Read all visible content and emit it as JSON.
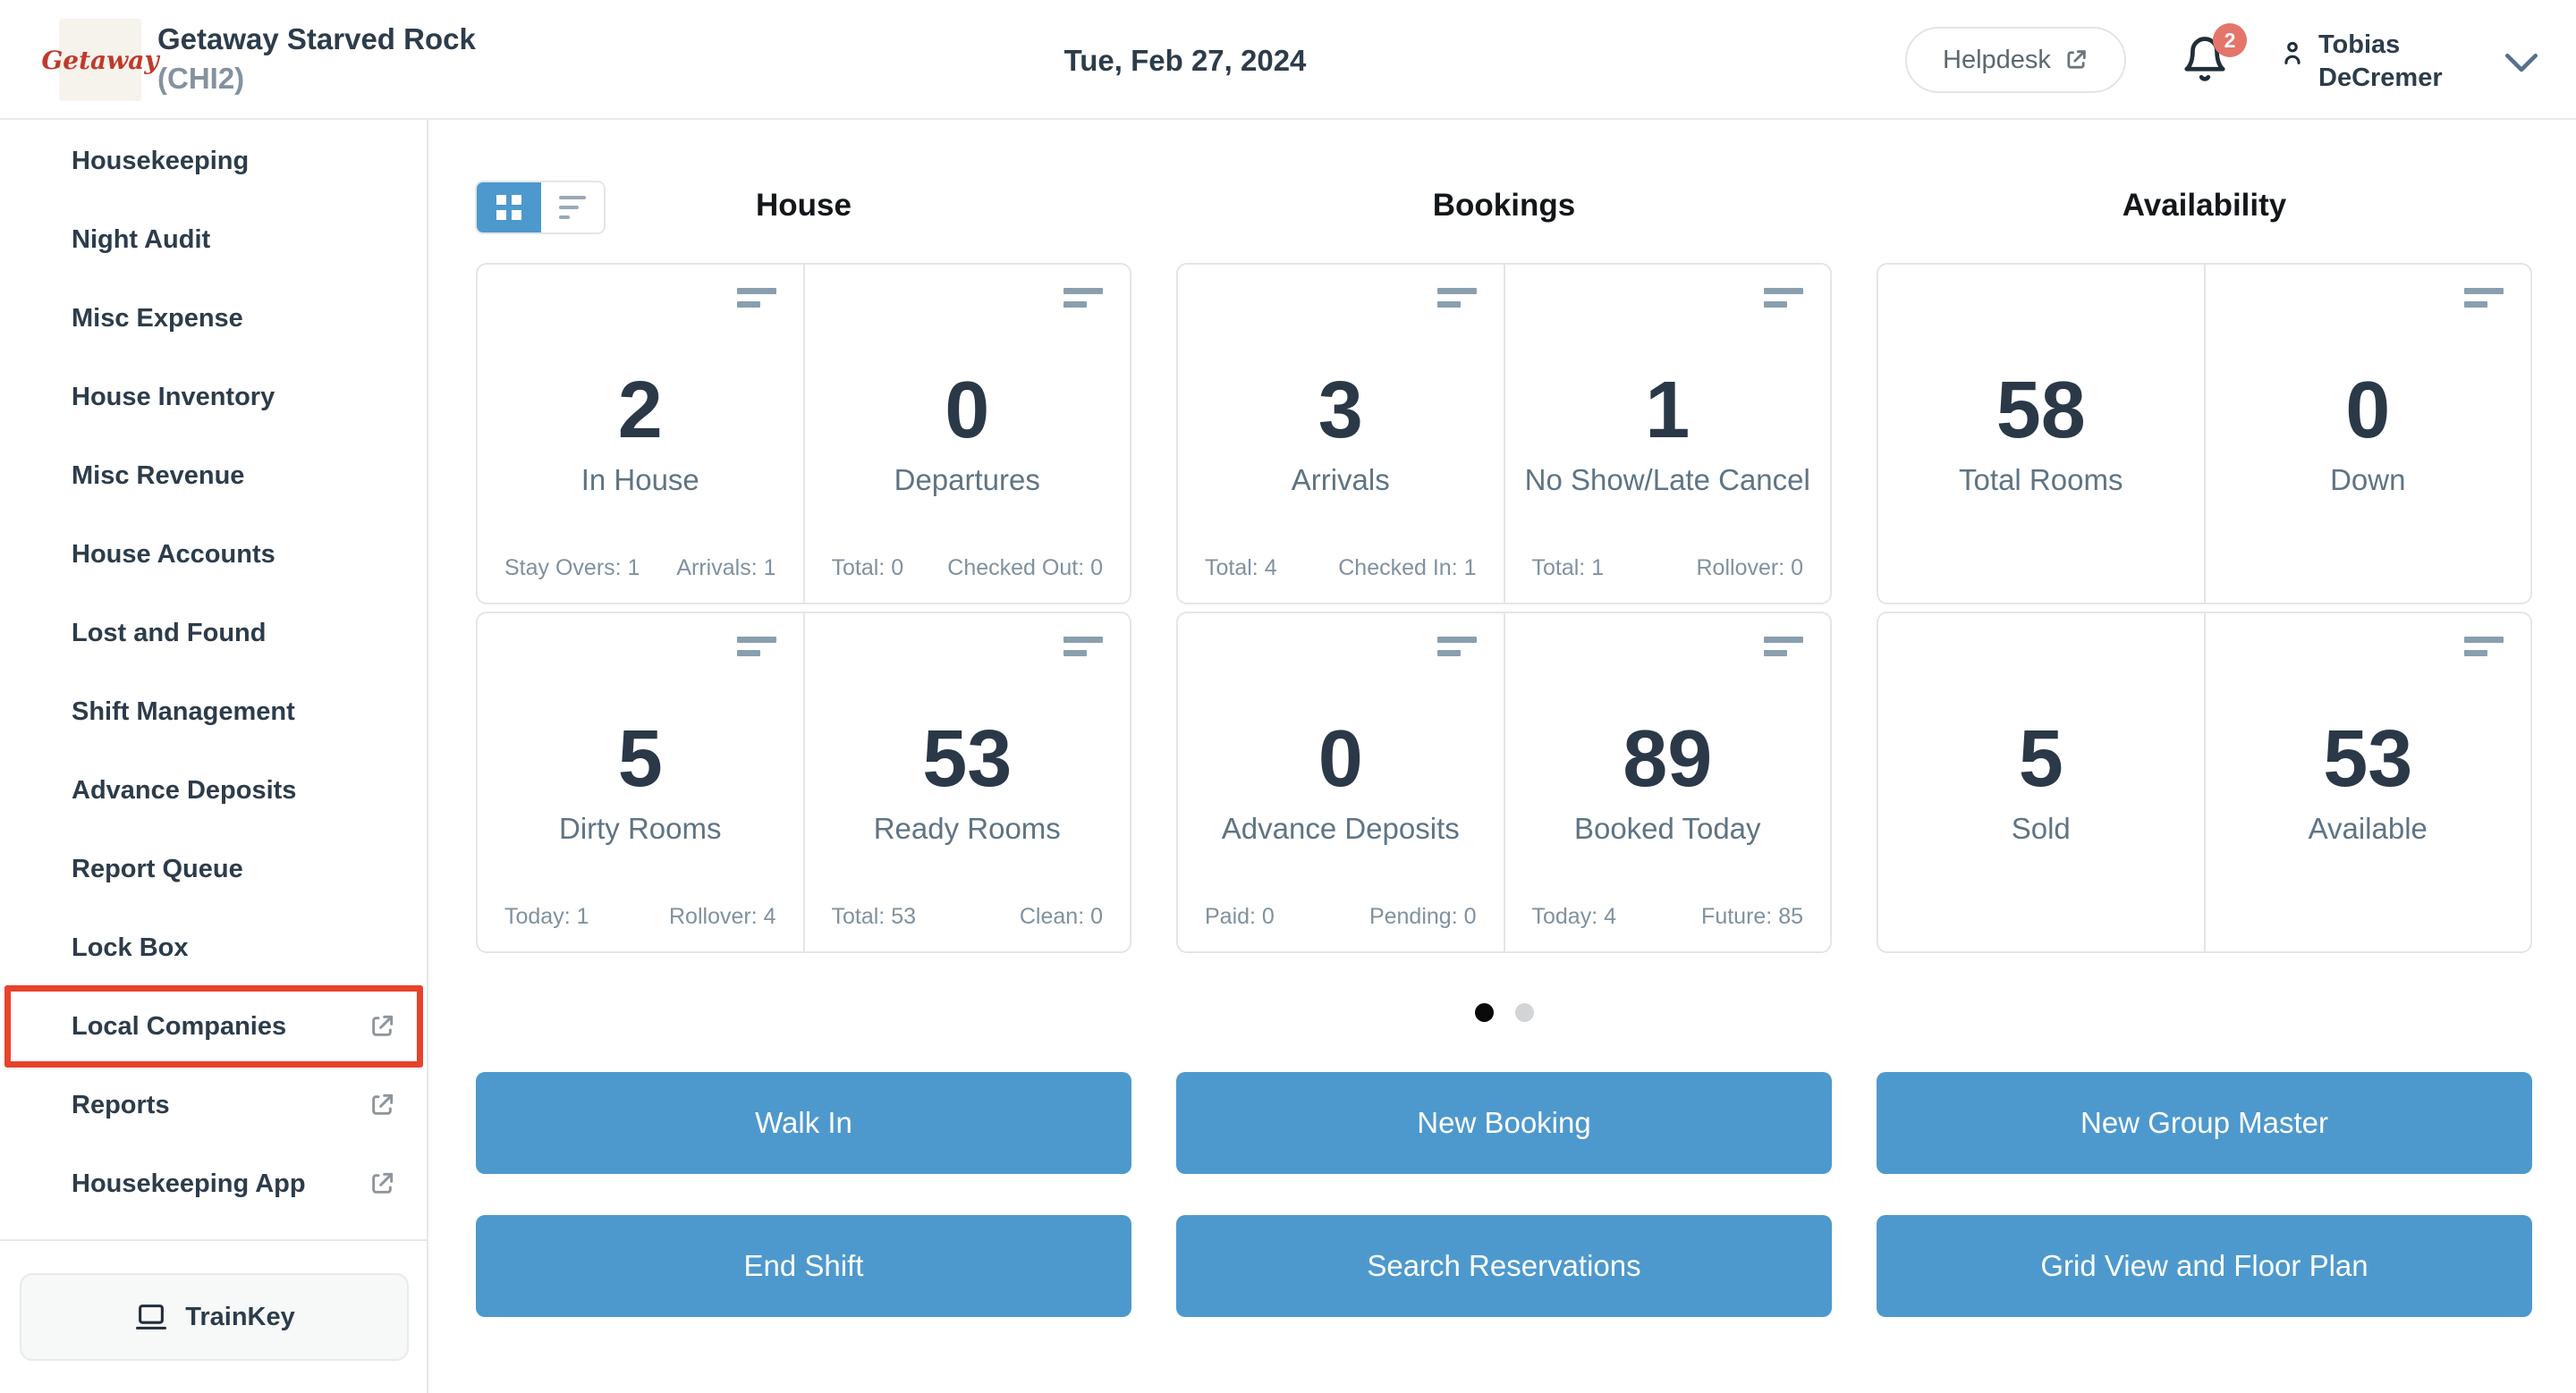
{
  "header": {
    "logo_text": "Getaway",
    "property_name": "Getaway Starved Rock",
    "property_code": "(CHI2)",
    "date": "Tue, Feb 27, 2024",
    "helpdesk_label": "Helpdesk",
    "notification_count": "2",
    "user_name_line1": "Tobias",
    "user_name_line2": "DeCremer"
  },
  "sidebar": {
    "items": [
      {
        "label": "Housekeeping",
        "external": false,
        "highlighted": false
      },
      {
        "label": "Night Audit",
        "external": false,
        "highlighted": false
      },
      {
        "label": "Misc Expense",
        "external": false,
        "highlighted": false
      },
      {
        "label": "House Inventory",
        "external": false,
        "highlighted": false
      },
      {
        "label": "Misc Revenue",
        "external": false,
        "highlighted": false
      },
      {
        "label": "House Accounts",
        "external": false,
        "highlighted": false
      },
      {
        "label": "Lost and Found",
        "external": false,
        "highlighted": false
      },
      {
        "label": "Shift Management",
        "external": false,
        "highlighted": false
      },
      {
        "label": "Advance Deposits",
        "external": false,
        "highlighted": false
      },
      {
        "label": "Report Queue",
        "external": false,
        "highlighted": false
      },
      {
        "label": "Lock Box",
        "external": false,
        "highlighted": false
      },
      {
        "label": "Local Companies",
        "external": true,
        "highlighted": true
      },
      {
        "label": "Reports",
        "external": true,
        "highlighted": false
      },
      {
        "label": "Housekeeping App",
        "external": true,
        "highlighted": false
      }
    ],
    "trainkey_label": "TrainKey"
  },
  "main": {
    "sections": [
      {
        "title": "House",
        "cards": [
          {
            "value": "2",
            "label": "In House",
            "stat_left": "Stay Overs: 1",
            "stat_right": "Arrivals: 1",
            "icon": true
          },
          {
            "value": "0",
            "label": "Departures",
            "stat_left": "Total: 0",
            "stat_right": "Checked Out: 0",
            "icon": true
          },
          {
            "value": "5",
            "label": "Dirty Rooms",
            "stat_left": "Today: 1",
            "stat_right": "Rollover: 4",
            "icon": true
          },
          {
            "value": "53",
            "label": "Ready Rooms",
            "stat_left": "Total: 53",
            "stat_right": "Clean: 0",
            "icon": true
          }
        ]
      },
      {
        "title": "Bookings",
        "cards": [
          {
            "value": "3",
            "label": "Arrivals",
            "stat_left": "Total: 4",
            "stat_right": "Checked In: 1",
            "icon": true
          },
          {
            "value": "1",
            "label": "No Show/Late Cancel",
            "stat_left": "Total: 1",
            "stat_right": "Rollover: 0",
            "icon": true
          },
          {
            "value": "0",
            "label": "Advance Deposits",
            "stat_left": "Paid: 0",
            "stat_right": "Pending: 0",
            "icon": true
          },
          {
            "value": "89",
            "label": "Booked Today",
            "stat_left": "Today: 4",
            "stat_right": "Future: 85",
            "icon": true
          }
        ]
      },
      {
        "title": "Availability",
        "cards": [
          {
            "value": "58",
            "label": "Total Rooms",
            "stat_left": "",
            "stat_right": "",
            "icon": false
          },
          {
            "value": "0",
            "label": "Down",
            "stat_left": "",
            "stat_right": "",
            "icon": true
          },
          {
            "value": "5",
            "label": "Sold",
            "stat_left": "",
            "stat_right": "",
            "icon": false
          },
          {
            "value": "53",
            "label": "Available",
            "stat_left": "",
            "stat_right": "",
            "icon": true
          }
        ]
      }
    ],
    "pagination": {
      "total": 2,
      "active_index": 0
    },
    "actions": [
      [
        "Walk In",
        "End Shift"
      ],
      [
        "New Booking",
        "Search Reservations"
      ],
      [
        "New Group Master",
        "Grid View and Floor Plan"
      ]
    ]
  },
  "colors": {
    "accent_blue": "#4d99cd",
    "highlight_red": "#e8422c",
    "badge_red": "#e4756b",
    "logo_red": "#c03a2b",
    "text_dark": "#2d3c4b",
    "text_muted": "#5f7484",
    "text_stats": "#8091a0"
  }
}
